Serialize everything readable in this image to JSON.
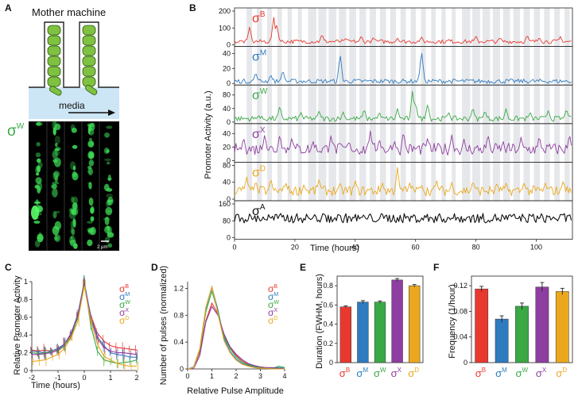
{
  "colors": {
    "B": "#e8392f",
    "M": "#2e7bbf",
    "W": "#3aa845",
    "X": "#8e3ea0",
    "D": "#eba81e",
    "A": "#111111",
    "shade": "#e5e7ea",
    "cell": "#7fc241",
    "media": "#cde6f6"
  },
  "labels": {
    "A": "A",
    "B": "B",
    "C": "C",
    "D": "D",
    "E": "E",
    "F": "F"
  },
  "sigma": "σ",
  "panelA": {
    "title": "Mother machine",
    "media": "media",
    "sigma_sup": "W",
    "scale": "2 μm"
  },
  "sigmas": [
    {
      "key": "B",
      "sup": "B"
    },
    {
      "key": "M",
      "sup": "M"
    },
    {
      "key": "W",
      "sup": "W"
    },
    {
      "key": "X",
      "sup": "X"
    },
    {
      "key": "D",
      "sup": "D"
    }
  ],
  "chart_data": [
    {
      "id": "B",
      "type": "line",
      "title": "",
      "xlabel": "Time (hours)",
      "ylabel": "Promoter Activity (a.u.)",
      "xlim": [
        0,
        112
      ],
      "x_ticks": [
        "0",
        "20",
        "40",
        "60",
        "80",
        "100"
      ],
      "series": [
        {
          "name": "σB",
          "ylim": [
            0,
            200
          ],
          "ticks": [
            "0",
            "100",
            "200"
          ],
          "base": [
            8,
            32
          ],
          "pulses": [
            [
              5,
              110
            ],
            [
              13,
              170
            ],
            [
              14,
              120
            ],
            [
              29,
              65
            ],
            [
              37,
              40
            ],
            [
              42,
              55
            ],
            [
              46,
              45
            ],
            [
              54,
              40
            ],
            [
              62,
              50
            ],
            [
              71,
              35
            ],
            [
              80,
              55
            ],
            [
              88,
              45
            ],
            [
              97,
              60
            ],
            [
              101,
              45
            ],
            [
              108,
              50
            ]
          ]
        },
        {
          "name": "σM",
          "ylim": [
            0,
            45
          ],
          "ticks": [
            "0",
            "20",
            "40"
          ],
          "base": [
            0,
            6
          ],
          "pulses": [
            [
              7,
              15
            ],
            [
              12,
              12
            ],
            [
              16,
              18
            ],
            [
              35,
              40
            ],
            [
              50,
              6
            ],
            [
              62,
              44
            ]
          ]
        },
        {
          "name": "σW",
          "ylim": [
            0,
            100
          ],
          "ticks": [
            "0",
            "40",
            "80"
          ],
          "base": [
            2,
            18
          ],
          "pulses": [
            [
              8,
              20
            ],
            [
              15,
              50
            ],
            [
              22,
              30
            ],
            [
              28,
              35
            ],
            [
              36,
              30
            ],
            [
              43,
              40
            ],
            [
              48,
              30
            ],
            [
              54,
              40
            ],
            [
              59,
              95
            ],
            [
              60,
              60
            ],
            [
              64,
              55
            ],
            [
              71,
              30
            ],
            [
              79,
              45
            ],
            [
              83,
              35
            ],
            [
              90,
              40
            ],
            [
              98,
              30
            ],
            [
              104,
              35
            ],
            [
              110,
              40
            ]
          ]
        },
        {
          "name": "σX",
          "ylim": [
            0,
            50
          ],
          "ticks": [
            "0",
            "20",
            "40"
          ],
          "base": [
            8,
            26
          ],
          "pulses": [
            [
              3,
              35
            ],
            [
              10,
              40
            ],
            [
              15,
              40
            ],
            [
              19,
              35
            ],
            [
              26,
              30
            ],
            [
              32,
              38
            ],
            [
              38,
              30
            ],
            [
              45,
              44
            ],
            [
              48,
              33
            ],
            [
              53,
              30
            ],
            [
              56,
              45
            ],
            [
              64,
              35
            ],
            [
              72,
              38
            ],
            [
              76,
              33
            ],
            [
              84,
              40
            ],
            [
              89,
              30
            ],
            [
              95,
              36
            ],
            [
              101,
              38
            ],
            [
              111,
              40
            ]
          ]
        },
        {
          "name": "σD",
          "ylim": [
            0,
            80
          ],
          "ticks": [
            "0",
            "40",
            "80"
          ],
          "base": [
            8,
            32
          ],
          "pulses": [
            [
              4,
              55
            ],
            [
              7,
              45
            ],
            [
              12,
              50
            ],
            [
              17,
              40
            ],
            [
              23,
              35
            ],
            [
              28,
              50
            ],
            [
              35,
              40
            ],
            [
              40,
              45
            ],
            [
              49,
              40
            ],
            [
              54,
              75
            ],
            [
              58,
              40
            ],
            [
              62,
              35
            ],
            [
              67,
              45
            ],
            [
              72,
              40
            ],
            [
              79,
              45
            ],
            [
              87,
              40
            ],
            [
              90,
              38
            ],
            [
              96,
              42
            ],
            [
              103,
              40
            ],
            [
              109,
              45
            ]
          ]
        },
        {
          "name": "σA",
          "ylim": [
            0,
            160
          ],
          "ticks": [
            "0",
            "80",
            "160"
          ],
          "base": [
            60,
            120
          ],
          "pulses": [
            [
              10,
              125
            ],
            [
              14,
              135
            ],
            [
              28,
              120
            ],
            [
              48,
              125
            ]
          ]
        }
      ]
    },
    {
      "id": "C",
      "type": "line",
      "xlabel": "Time (hours)",
      "ylabel": "Relative Promoter Activity",
      "xlim": [
        -2,
        2
      ],
      "ylim": [
        0,
        1
      ],
      "x_ticks": [
        "-2",
        "-1",
        "0",
        "1",
        "2"
      ],
      "y_ticks": [
        "0",
        "0.2",
        "0.4",
        "0.6",
        "0.8",
        "1"
      ],
      "x": [
        -2,
        -1.75,
        -1.5,
        -1.25,
        -1,
        -0.75,
        -0.5,
        -0.25,
        0,
        0.25,
        0.5,
        0.75,
        1,
        1.25,
        1.5,
        1.75,
        2
      ],
      "series": [
        {
          "name": "σB",
          "values": [
            0.23,
            0.22,
            0.23,
            0.22,
            0.24,
            0.3,
            0.4,
            0.6,
            0.96,
            0.62,
            0.42,
            0.33,
            0.28,
            0.26,
            0.25,
            0.24,
            0.23
          ]
        },
        {
          "name": "σM",
          "values": [
            0.22,
            0.21,
            0.2,
            0.22,
            0.25,
            0.3,
            0.42,
            0.63,
            1.0,
            0.6,
            0.38,
            0.28,
            0.2,
            0.18,
            0.17,
            0.15,
            0.15
          ]
        },
        {
          "name": "σW",
          "values": [
            0.2,
            0.19,
            0.2,
            0.21,
            0.22,
            0.28,
            0.38,
            0.6,
            1.0,
            0.5,
            0.22,
            0.12,
            0.1,
            0.08,
            0.09,
            0.1,
            0.12
          ]
        },
        {
          "name": "σX",
          "values": [
            0.18,
            0.18,
            0.19,
            0.2,
            0.23,
            0.3,
            0.42,
            0.62,
            0.97,
            0.58,
            0.36,
            0.26,
            0.22,
            0.2,
            0.2,
            0.19,
            0.18
          ]
        },
        {
          "name": "σD",
          "values": [
            0.1,
            0.11,
            0.12,
            0.15,
            0.18,
            0.25,
            0.37,
            0.55,
            0.95,
            0.55,
            0.3,
            0.16,
            0.12,
            0.08,
            0.06,
            0.05,
            0.05
          ]
        }
      ]
    },
    {
      "id": "D",
      "type": "line",
      "xlabel": "Relative Pulse Amplitude",
      "ylabel": "Number of pulses (normalized)",
      "xlim": [
        0,
        4
      ],
      "ylim": [
        0,
        1.3
      ],
      "x_ticks": [
        "0",
        "1",
        "2",
        "3",
        "4"
      ],
      "y_ticks": [
        "0",
        "0.4",
        "0.8",
        "1.2"
      ],
      "x": [
        0,
        0.25,
        0.5,
        0.75,
        1,
        1.25,
        1.5,
        1.75,
        2,
        2.25,
        2.5,
        2.75,
        3,
        3.25,
        3.5,
        3.75,
        4
      ],
      "series": [
        {
          "name": "σB",
          "values": [
            0,
            0.02,
            0.25,
            0.72,
            0.98,
            0.82,
            0.5,
            0.32,
            0.2,
            0.12,
            0.07,
            0.05,
            0.03,
            0.02,
            0.01,
            0.01,
            0
          ]
        },
        {
          "name": "σM",
          "values": [
            0,
            0.03,
            0.3,
            0.9,
            1.22,
            0.88,
            0.45,
            0.26,
            0.15,
            0.08,
            0.05,
            0.03,
            0.02,
            0.01,
            0.01,
            0.02,
            0.01
          ]
        },
        {
          "name": "σW",
          "values": [
            0,
            0.02,
            0.28,
            0.85,
            1.16,
            0.85,
            0.48,
            0.3,
            0.18,
            0.1,
            0.06,
            0.04,
            0.02,
            0.02,
            0.01,
            0.04,
            0.02
          ]
        },
        {
          "name": "σX",
          "values": [
            0,
            0.01,
            0.2,
            0.7,
            0.93,
            0.8,
            0.52,
            0.33,
            0.22,
            0.14,
            0.08,
            0.05,
            0.03,
            0.02,
            0.02,
            0.01,
            0
          ]
        },
        {
          "name": "σD",
          "values": [
            0,
            0.02,
            0.3,
            0.92,
            1.23,
            0.82,
            0.42,
            0.24,
            0.13,
            0.07,
            0.04,
            0.02,
            0.01,
            0.01,
            0,
            0,
            0
          ]
        }
      ]
    },
    {
      "id": "E",
      "type": "bar",
      "ylabel": "Duration (FWHM, hours)",
      "ylim": [
        0,
        0.9
      ],
      "y_ticks": [
        "0",
        "0.2",
        "0.4",
        "0.6",
        "0.8"
      ],
      "categories": [
        "σB",
        "σM",
        "σW",
        "σX",
        "σD"
      ],
      "values": [
        0.58,
        0.63,
        0.63,
        0.86,
        0.8
      ],
      "errors": [
        0.01,
        0.015,
        0.012,
        0.015,
        0.012
      ]
    },
    {
      "id": "F",
      "type": "bar",
      "ylabel": "Frequency (1/hour)",
      "ylim": [
        0,
        0.135
      ],
      "y_ticks": [
        "0",
        "0.04",
        "0.08",
        "0.12"
      ],
      "categories": [
        "σB",
        "σM",
        "σW",
        "σX",
        "σD"
      ],
      "values": [
        0.115,
        0.068,
        0.088,
        0.118,
        0.111
      ],
      "errors": [
        0.004,
        0.005,
        0.005,
        0.007,
        0.005
      ]
    }
  ]
}
